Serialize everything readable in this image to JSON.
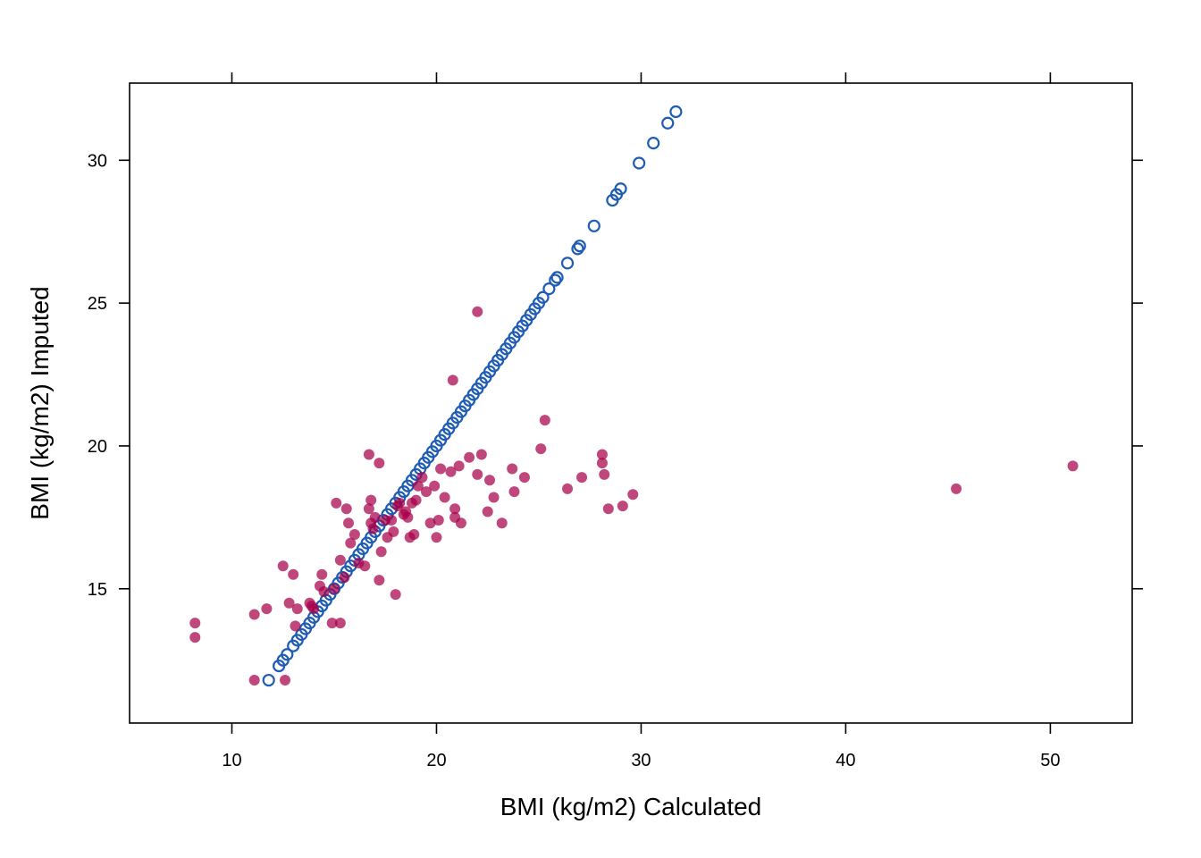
{
  "chart_data": {
    "type": "scatter",
    "xlabel": "BMI (kg/m2) Calculated",
    "ylabel": "BMI (kg/m2) Imputed",
    "xlim": [
      5,
      54
    ],
    "ylim": [
      10.3,
      32.7
    ],
    "x_ticks": [
      10,
      20,
      30,
      40,
      50
    ],
    "y_ticks": [
      15,
      20,
      25,
      30
    ],
    "grid": false,
    "legend": "none",
    "series": [
      {
        "color": "#1f5cb4",
        "marker": "open-circle",
        "x": [
          11.8,
          12.3,
          12.5,
          12.7,
          13.0,
          13.2,
          13.4,
          13.6,
          13.8,
          14.0,
          14.2,
          14.4,
          14.6,
          14.8,
          15.0,
          15.2,
          15.4,
          15.6,
          15.8,
          16.0,
          16.2,
          16.4,
          16.6,
          16.8,
          17.0,
          17.2,
          17.4,
          17.6,
          17.8,
          18.0,
          18.2,
          18.4,
          18.6,
          18.8,
          19.0,
          19.2,
          19.4,
          19.6,
          19.8,
          20.0,
          20.2,
          20.4,
          20.6,
          20.8,
          21.0,
          21.2,
          21.4,
          21.6,
          21.8,
          22.0,
          22.2,
          22.4,
          22.6,
          22.8,
          23.0,
          23.2,
          23.4,
          23.6,
          23.8,
          24.0,
          24.2,
          24.4,
          24.6,
          24.8,
          25.0,
          25.2,
          25.5,
          25.8,
          25.9,
          26.4,
          26.9,
          27.0,
          27.7,
          28.6,
          28.8,
          29.0,
          29.9,
          30.6,
          31.3,
          31.7
        ],
        "y": [
          11.8,
          12.3,
          12.5,
          12.7,
          13.0,
          13.2,
          13.4,
          13.6,
          13.8,
          14.0,
          14.2,
          14.4,
          14.6,
          14.8,
          15.0,
          15.2,
          15.4,
          15.6,
          15.8,
          16.0,
          16.2,
          16.4,
          16.6,
          16.8,
          17.0,
          17.2,
          17.4,
          17.6,
          17.8,
          18.0,
          18.2,
          18.4,
          18.6,
          18.8,
          19.0,
          19.2,
          19.4,
          19.6,
          19.8,
          20.0,
          20.2,
          20.4,
          20.6,
          20.8,
          21.0,
          21.2,
          21.4,
          21.6,
          21.8,
          22.0,
          22.2,
          22.4,
          22.6,
          22.8,
          23.0,
          23.2,
          23.4,
          23.6,
          23.8,
          24.0,
          24.2,
          24.4,
          24.6,
          24.8,
          25.0,
          25.2,
          25.5,
          25.8,
          25.9,
          26.4,
          26.9,
          27.0,
          27.7,
          28.6,
          28.8,
          29.0,
          29.9,
          30.6,
          31.3,
          31.7
        ]
      },
      {
        "color": "#a8004a",
        "marker": "filled-circle",
        "x": [
          8.2,
          8.2,
          11.1,
          11.1,
          11.7,
          12.5,
          12.6,
          12.8,
          13.0,
          13.1,
          13.2,
          13.8,
          13.9,
          14.0,
          14.3,
          14.4,
          14.5,
          14.9,
          15.0,
          15.1,
          15.3,
          15.3,
          15.5,
          15.6,
          15.7,
          15.8,
          16.0,
          16.2,
          16.5,
          16.7,
          16.7,
          16.8,
          16.8,
          16.9,
          17.0,
          17.2,
          17.2,
          17.3,
          17.5,
          17.6,
          17.8,
          17.9,
          18.0,
          18.1,
          18.2,
          18.4,
          18.5,
          18.6,
          18.7,
          18.8,
          18.9,
          19.0,
          19.1,
          19.3,
          19.5,
          19.7,
          19.9,
          20.0,
          20.1,
          20.2,
          20.4,
          20.7,
          20.8,
          20.9,
          20.9,
          21.1,
          21.2,
          21.6,
          22.0,
          22.0,
          22.2,
          22.5,
          22.6,
          22.8,
          23.2,
          23.7,
          23.8,
          24.3,
          25.1,
          25.3,
          26.4,
          27.1,
          28.1,
          28.1,
          28.2,
          28.4,
          29.1,
          29.6,
          45.4,
          51.1
        ],
        "y": [
          13.8,
          13.3,
          14.1,
          11.8,
          14.3,
          15.8,
          11.8,
          14.5,
          15.5,
          13.7,
          14.3,
          14.5,
          14.4,
          14.3,
          15.1,
          15.5,
          14.9,
          13.8,
          15.0,
          18.0,
          16.0,
          13.8,
          15.4,
          17.8,
          17.3,
          16.6,
          16.9,
          15.9,
          15.8,
          19.7,
          17.8,
          18.1,
          17.3,
          17.1,
          17.5,
          19.4,
          15.3,
          16.3,
          17.4,
          16.8,
          17.4,
          17.0,
          14.8,
          17.9,
          18.0,
          17.6,
          17.7,
          17.5,
          16.8,
          18.0,
          16.9,
          18.1,
          18.6,
          18.9,
          18.4,
          17.3,
          18.6,
          16.8,
          17.4,
          19.2,
          18.2,
          19.1,
          22.3,
          17.5,
          17.8,
          19.3,
          17.3,
          19.6,
          24.7,
          19.0,
          19.7,
          17.7,
          18.8,
          18.2,
          17.3,
          19.2,
          18.4,
          18.9,
          19.9,
          20.9,
          18.5,
          18.9,
          19.7,
          19.4,
          19.0,
          17.8,
          17.9,
          18.3,
          18.5,
          19.3
        ]
      }
    ]
  }
}
